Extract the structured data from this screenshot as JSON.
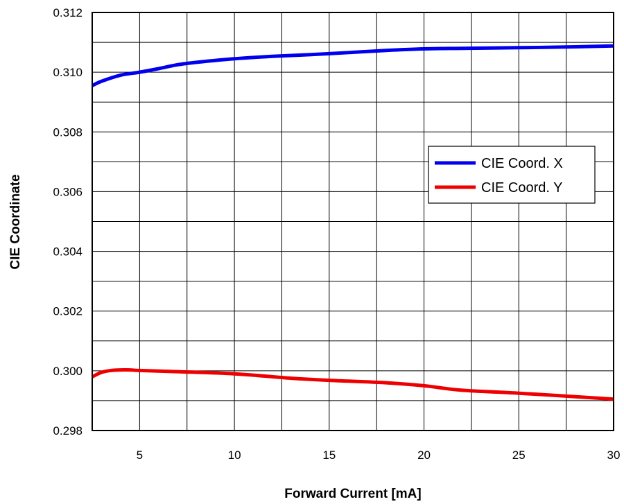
{
  "chart_data": {
    "type": "line",
    "xlabel": "Forward Current [mA]",
    "ylabel": "CIE Coordinate",
    "xlim": [
      2.5,
      30
    ],
    "ylim": [
      0.298,
      0.312
    ],
    "x_ticks": [
      5,
      10,
      15,
      20,
      25,
      30
    ],
    "x_tick_labels": [
      "5",
      "10",
      "15",
      "20",
      "25",
      "30"
    ],
    "y_ticks": [
      0.298,
      0.3,
      0.302,
      0.304,
      0.306,
      0.308,
      0.31,
      0.312
    ],
    "y_tick_labels": [
      "0.298",
      "0.300",
      "0.302",
      "0.304",
      "0.306",
      "0.308",
      "0.310",
      "0.312"
    ],
    "x_minor_step": 2.5,
    "y_minor_step": 0.001,
    "grid": true,
    "legend_position": "right",
    "series": [
      {
        "name": "CIE Coord. X",
        "color": "#0000ee",
        "x": [
          2.5,
          3,
          4,
          5,
          6,
          7,
          8,
          10,
          12,
          15,
          18,
          20,
          22,
          25,
          28,
          30
        ],
        "y": [
          0.30955,
          0.3097,
          0.3099,
          0.31,
          0.31012,
          0.31025,
          0.31033,
          0.31045,
          0.31053,
          0.31062,
          0.31073,
          0.31078,
          0.3108,
          0.31082,
          0.31085,
          0.31088
        ]
      },
      {
        "name": "CIE Coord. Y",
        "color": "#ee0000",
        "x": [
          2.5,
          3,
          3.5,
          4,
          4.5,
          5,
          7,
          10,
          13,
          15,
          18,
          20,
          22,
          25,
          28,
          30
        ],
        "y": [
          0.2998,
          0.29995,
          0.30001,
          0.30003,
          0.30003,
          0.30001,
          0.29997,
          0.2999,
          0.29975,
          0.29968,
          0.2996,
          0.2995,
          0.29935,
          0.29925,
          0.29913,
          0.29905
        ]
      }
    ]
  }
}
